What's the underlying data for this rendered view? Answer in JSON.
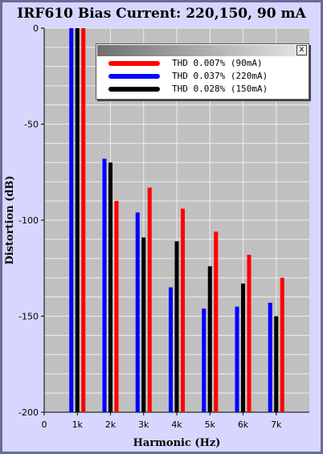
{
  "chart_data": {
    "type": "bar",
    "title": "IRF610 Bias Current: 220,150, 90 mA",
    "xlabel": "Harmonic (Hz)",
    "ylabel": "Distortion (dB)",
    "ylim": [
      -200,
      0
    ],
    "yticks": [
      "0",
      "-50",
      "-100",
      "-150",
      "-200"
    ],
    "categories": [
      "0",
      "1k",
      "2k",
      "3k",
      "4k",
      "5k",
      "6k",
      "7k"
    ],
    "grid": true,
    "legend_position": "top-right",
    "series": [
      {
        "name": "THD 0.037% (220mA)",
        "color": "#0000ff",
        "values": [
          null,
          0,
          -68,
          -96,
          -135,
          -146,
          -145,
          -143
        ]
      },
      {
        "name": "THD 0.028% (150mA)",
        "color": "#000000",
        "values": [
          null,
          0,
          -70,
          -109,
          -111,
          -124,
          -133,
          -150
        ]
      },
      {
        "name": "THD 0.007% (90mA)",
        "color": "#ff0000",
        "values": [
          null,
          0,
          -90,
          -83,
          -94,
          -106,
          -118,
          -130
        ]
      }
    ]
  },
  "legend": {
    "close_label": "x",
    "entries": [
      {
        "label": "THD 0.007% (90mA)",
        "color": "#ff0000"
      },
      {
        "label": "THD 0.037% (220mA)",
        "color": "#0000ff"
      },
      {
        "label": "THD 0.028% (150mA)",
        "color": "#000000"
      }
    ]
  }
}
